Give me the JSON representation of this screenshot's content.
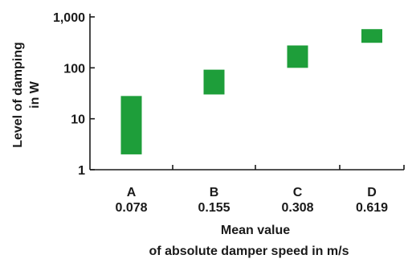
{
  "chart_data": {
    "type": "bar",
    "subtype": "floating-range",
    "scale": "log",
    "ylim": [
      1,
      1000
    ],
    "yticks": [
      {
        "value": 1,
        "label": "1"
      },
      {
        "value": 10,
        "label": "10"
      },
      {
        "value": 100,
        "label": "100"
      },
      {
        "value": 1000,
        "label": "1,000"
      }
    ],
    "ylabel": [
      "Level of damping",
      "in W"
    ],
    "xlabel": [
      "Mean value",
      "of absolute damper speed in m/s"
    ],
    "categories": [
      {
        "name": "A",
        "speed": "0.078",
        "low": 2,
        "high": 28
      },
      {
        "name": "B",
        "speed": "0.155",
        "low": 30,
        "high": 92
      },
      {
        "name": "C",
        "speed": "0.308",
        "low": 100,
        "high": 275
      },
      {
        "name": "D",
        "speed": "0.619",
        "low": 310,
        "high": 575
      }
    ],
    "bar_color": "#1e9e3a",
    "axis_color": "#1a1a1a",
    "grid": false
  }
}
